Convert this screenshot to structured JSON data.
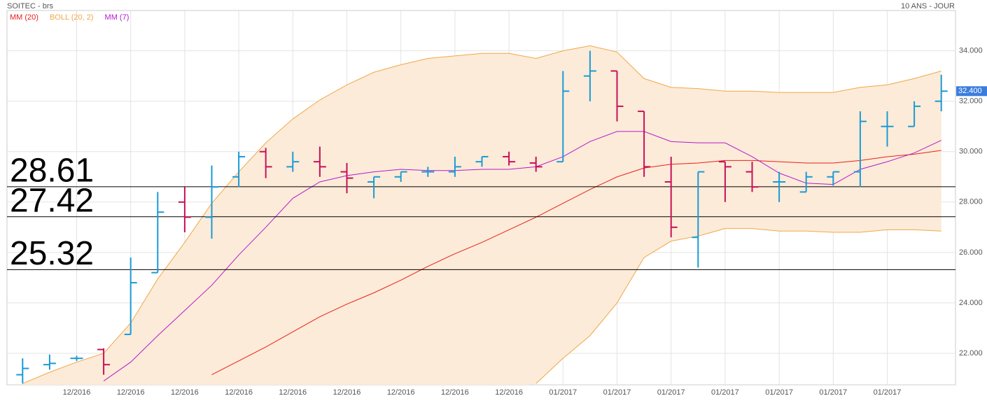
{
  "chart_data": {
    "type": "ohlc",
    "title": "SOITEC - brs",
    "period": "10 ANS - JOUR",
    "categories": [
      null,
      null,
      "12/2016",
      null,
      "12/2016",
      null,
      "12/2016",
      null,
      "12/2016",
      null,
      "12/2016",
      null,
      "12/2016",
      null,
      "12/2016",
      null,
      "12/2016",
      null,
      "12/2016",
      null,
      "01/2017",
      null,
      "01/2017",
      null,
      "01/2017",
      null,
      "01/2017",
      null,
      "01/2017",
      null,
      "01/2017",
      null,
      "01/2017",
      null,
      null
    ],
    "open": [
      21.15,
      21.55,
      21.8,
      22.15,
      22.75,
      25.2,
      28.0,
      27.4,
      29.0,
      30.0,
      29.4,
      29.6,
      29.2,
      28.8,
      29.0,
      29.2,
      29.2,
      29.6,
      29.8,
      29.55,
      29.6,
      33.0,
      33.2,
      31.6,
      28.8,
      26.6,
      29.6,
      29.2,
      28.8,
      28.4,
      29.0,
      29.2,
      31.0,
      31.0,
      32.0
    ],
    "high": [
      21.8,
      21.95,
      21.9,
      22.2,
      25.8,
      28.4,
      28.6,
      29.45,
      30.0,
      30.15,
      30.0,
      30.2,
      29.55,
      29.0,
      29.2,
      29.4,
      29.8,
      29.8,
      30.0,
      29.8,
      33.2,
      34.0,
      33.2,
      31.6,
      29.8,
      29.2,
      29.6,
      29.6,
      29.2,
      29.2,
      29.2,
      31.6,
      31.6,
      32.0,
      33.05
    ],
    "low": [
      20.8,
      21.35,
      21.7,
      21.15,
      22.75,
      25.2,
      26.8,
      26.55,
      28.6,
      28.95,
      29.2,
      29.0,
      28.35,
      28.15,
      28.8,
      29.0,
      29.0,
      29.4,
      29.45,
      29.2,
      29.6,
      32.0,
      31.2,
      29.0,
      26.6,
      25.4,
      28.0,
      28.4,
      28.0,
      28.4,
      28.65,
      28.6,
      30.2,
      31.0,
      31.6
    ],
    "close": [
      21.4,
      21.6,
      21.8,
      21.55,
      24.8,
      27.6,
      27.4,
      28.6,
      29.8,
      29.4,
      29.6,
      29.4,
      28.95,
      29.0,
      29.2,
      29.2,
      29.4,
      29.8,
      29.6,
      29.4,
      32.4,
      33.2,
      31.8,
      29.4,
      27.0,
      29.2,
      29.4,
      28.6,
      28.8,
      29.0,
      29.2,
      31.2,
      31.0,
      31.8,
      32.4
    ],
    "up_color": "#1b9ad6",
    "down_color": "#c8105a",
    "series": [
      {
        "name": "MM (20)",
        "color": "#e8201c",
        "values": [
          null,
          null,
          null,
          null,
          null,
          null,
          null,
          21.15,
          21.7,
          22.25,
          22.85,
          23.45,
          23.95,
          24.4,
          24.9,
          25.45,
          25.95,
          26.4,
          26.9,
          27.4,
          27.95,
          28.5,
          29.0,
          29.35,
          29.5,
          29.55,
          29.65,
          29.65,
          29.6,
          29.55,
          29.55,
          29.65,
          29.8,
          29.9,
          30.05
        ]
      },
      {
        "name": "BOLL (20, 2)",
        "color": "#f0a848",
        "fill": "#fcebd8",
        "upper": [
          20.8,
          21.25,
          21.65,
          22.0,
          23.2,
          24.95,
          26.4,
          27.95,
          29.2,
          30.35,
          31.3,
          32.05,
          32.65,
          33.15,
          33.45,
          33.7,
          33.8,
          33.9,
          33.9,
          33.7,
          34.0,
          34.2,
          33.95,
          32.9,
          32.55,
          32.5,
          32.4,
          32.4,
          32.35,
          32.35,
          32.35,
          32.55,
          32.65,
          32.9,
          33.2
        ],
        "lower": [
          null,
          null,
          null,
          null,
          null,
          null,
          null,
          null,
          null,
          null,
          null,
          null,
          null,
          null,
          null,
          null,
          null,
          null,
          null,
          20.8,
          21.8,
          22.7,
          24.0,
          25.8,
          26.45,
          26.65,
          26.95,
          26.95,
          26.85,
          26.85,
          26.8,
          26.8,
          26.9,
          26.9,
          26.85
        ]
      },
      {
        "name": "MM (7)",
        "color": "#b31bcc",
        "values": [
          null,
          null,
          null,
          20.9,
          21.65,
          22.7,
          23.7,
          24.7,
          25.9,
          27.0,
          28.15,
          28.8,
          29.05,
          29.2,
          29.3,
          29.25,
          29.25,
          29.3,
          29.3,
          29.4,
          29.8,
          30.4,
          30.8,
          30.8,
          30.4,
          30.35,
          30.35,
          29.8,
          29.15,
          28.75,
          28.7,
          29.3,
          29.6,
          29.95,
          30.45
        ]
      }
    ],
    "levels": [
      28.61,
      27.42,
      25.32
    ],
    "last_price": {
      "value": 32.4,
      "label": "32.400"
    },
    "ylim": [
      20.75,
      35.6
    ],
    "yticks": [
      {
        "value": 22,
        "label": "22.000"
      },
      {
        "value": 24,
        "label": "24.000"
      },
      {
        "value": 26,
        "label": "26.000"
      },
      {
        "value": 28,
        "label": "28.000"
      },
      {
        "value": 30,
        "label": "30.000"
      },
      {
        "value": 32,
        "label": "32.000"
      },
      {
        "value": 34,
        "label": "34.000"
      }
    ],
    "grid": true
  }
}
